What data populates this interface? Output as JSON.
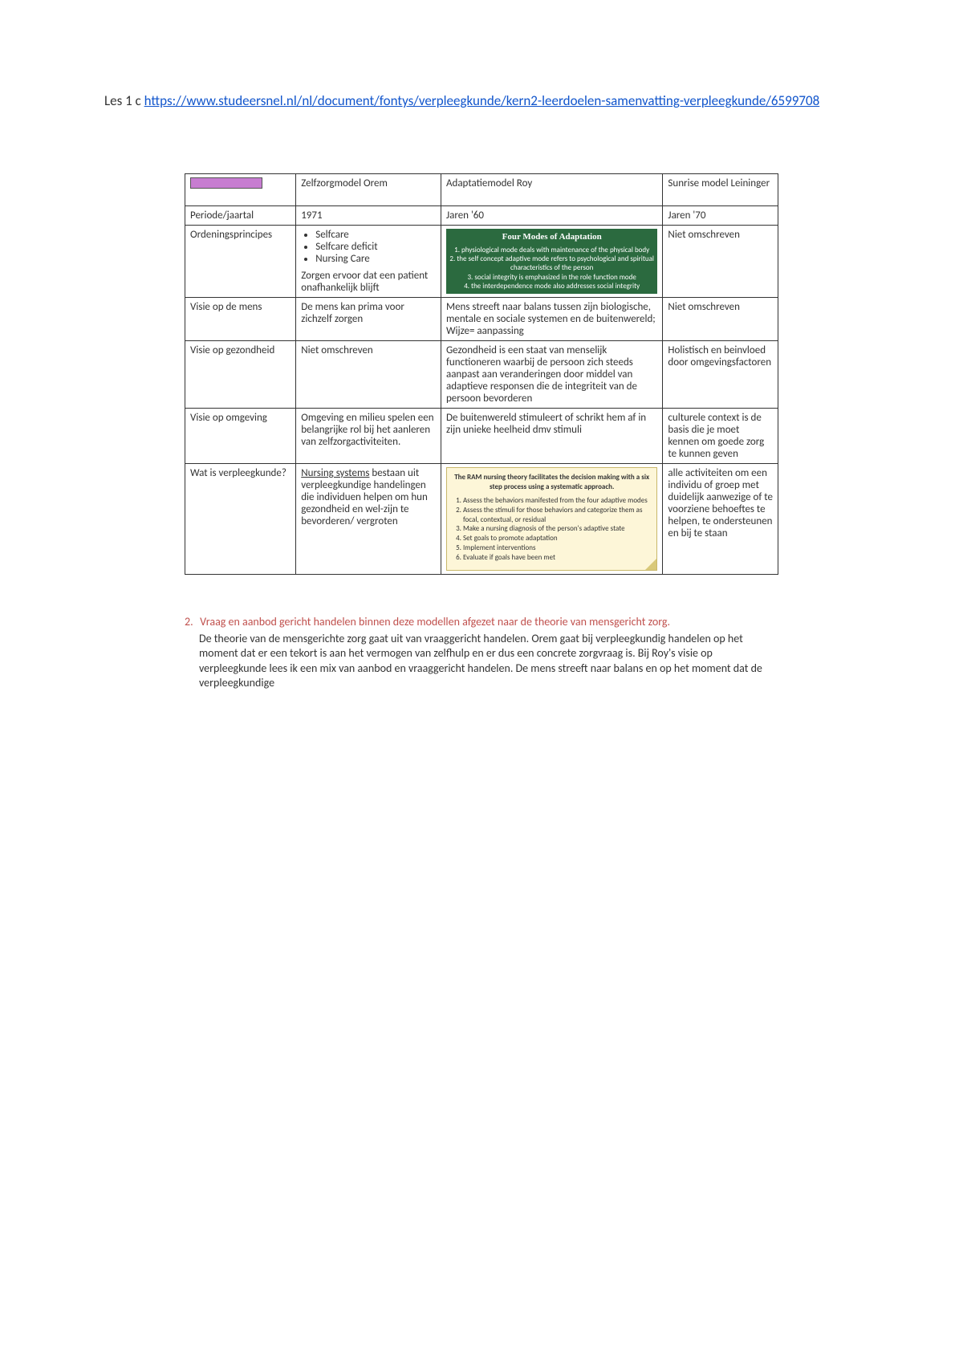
{
  "header": {
    "prefix": "Les 1 c ",
    "url_text": "https://www.studeersnel.nl/nl/document/fontys/verpleegkunde/kern2-leerdoelen-samenvatting-verpleegkunde/6599708"
  },
  "table": {
    "headers": {
      "blank": "",
      "orem": "Zelfzorgmodel Orem",
      "roy": "Adaptatiemodel Roy",
      "lei": "Sunrise model Leininger"
    },
    "rows": {
      "periode": {
        "label": "Periode/jaartal",
        "orem": "1971",
        "roy": "Jaren '60",
        "lei": "Jaren '70"
      },
      "ordening": {
        "label": "Ordeningsprincipes",
        "orem_bullets": [
          "Selfcare",
          "Selfcare deficit",
          "Nursing Care"
        ],
        "orem_after": "Zorgen ervoor dat een patient onafhankelijk blijft",
        "roy_title": "Four Modes of Adaptation",
        "roy_items": [
          "1. physiological mode deals with maintenance of the physical body",
          "2. the self concept adaptive mode refers to psychological and spiritual characteristics of the person",
          "3. social integrity is emphasized in the role function mode",
          "4. the interdependence mode also addresses social integrity"
        ],
        "lei": "Niet omschreven"
      },
      "visie_mens": {
        "label": "Visie op de mens",
        "orem": "De mens kan prima voor zichzelf zorgen",
        "roy": "Mens streeft naar balans tussen zijn biologische, mentale en sociale systemen en de buitenwereld; Wijze= aanpassing",
        "lei": "Niet omschreven"
      },
      "visie_gezondheid": {
        "label": "Visie op gezondheid",
        "orem": "Niet omschreven",
        "roy": "Gezondheid is een staat van menselijk functioneren waarbij de persoon zich steeds aanpast aan veranderingen door middel van adaptieve responsen die de integriteit van de persoon bevorderen",
        "lei": "Holistisch en beinvloed door omgevingsfactoren"
      },
      "visie_omgeving": {
        "label": "Visie op omgeving",
        "orem": "Omgeving en milieu spelen een belangrijke rol bij het aanleren van zelfzorgactiviteiten.",
        "roy": "De buitenwereld stimuleert of schrikt hem af in zijn unieke heelheid dmv stimuli",
        "lei": "culturele context is de basis die je moet kennen om goede zorg te kunnen geven"
      },
      "verpleegkunde": {
        "label": "Wat is verpleegkunde?",
        "orem_underline": "Nursing systems",
        "orem_rest": " bestaan uit verpleegkundige handelingen die individuen helpen om hun gezondheid en wel-zijn te bevorderen/ vergroten",
        "roy_title": "The RAM nursing theory facilitates the decision making with a six step process using a systematic approach.",
        "roy_steps": [
          "Assess the behaviors manifested from the four adaptive modes",
          "Assess the stimuli for those behaviors and categorize them as focal, contextual, or residual",
          "Make a nursing diagnosis of the person's adaptive state",
          "Set goals to promote adaptation",
          "Implement interventions",
          "Evaluate if goals have been met"
        ],
        "lei": "alle activiteiten om een individu of groep met duidelijk aanwezige of te voorziene behoeftes te helpen, te ondersteunen en bij te staan"
      }
    }
  },
  "section2": {
    "num": "2.",
    "question": "Vraag en aanbod gericht handelen binnen deze modellen afgezet naar de theorie van mensgericht zorg.",
    "body": "De theorie van de mensgerichte zorg gaat uit van vraaggericht handelen. Orem gaat bij verpleegkundig handelen op het moment dat er een tekort is aan het vermogen van zelfhulp en er dus een concrete zorgvraag is. Bij Roy's visie op verpleegkunde lees ik een mix van aanbod en vraaggericht handelen. De mens streeft naar balans en op het moment dat de verpleegkundige"
  },
  "colors": {
    "link": "#1155cc",
    "royGreen": "#2b6a3f",
    "ramBg": "#fdf6d8",
    "red": "#c0504d",
    "pinkTab": "#c77dd1"
  }
}
